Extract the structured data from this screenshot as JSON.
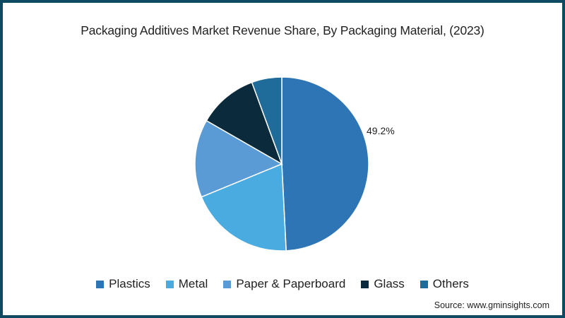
{
  "title": "Packaging Additives Market Revenue Share, By Packaging Material, (2023)",
  "source": "Source: www.gminsights.com",
  "chart_data": {
    "type": "pie",
    "title": "Packaging Additives Market Revenue Share, By Packaging Material, (2023)",
    "categories": [
      "Plastics",
      "Metal",
      "Paper & Paperboard",
      "Glass",
      "Others"
    ],
    "values": [
      49.2,
      19.6,
      14.5,
      11.1,
      5.6
    ],
    "colors": [
      "#2e75b6",
      "#4aabe0",
      "#5b9bd5",
      "#0b2a3c",
      "#1f6b9a"
    ],
    "data_labels": [
      {
        "category": "Plastics",
        "text": "49.2%"
      }
    ],
    "start_angle_deg": 0,
    "direction": "clockwise",
    "legend_position": "bottom",
    "unit": "%"
  },
  "legend": [
    {
      "label": "Plastics",
      "color": "#2e75b6"
    },
    {
      "label": "Metal",
      "color": "#4aabe0"
    },
    {
      "label": "Paper & Paperboard",
      "color": "#5b9bd5"
    },
    {
      "label": "Glass",
      "color": "#0b2a3c"
    },
    {
      "label": "Others",
      "color": "#1f6b9a"
    }
  ]
}
